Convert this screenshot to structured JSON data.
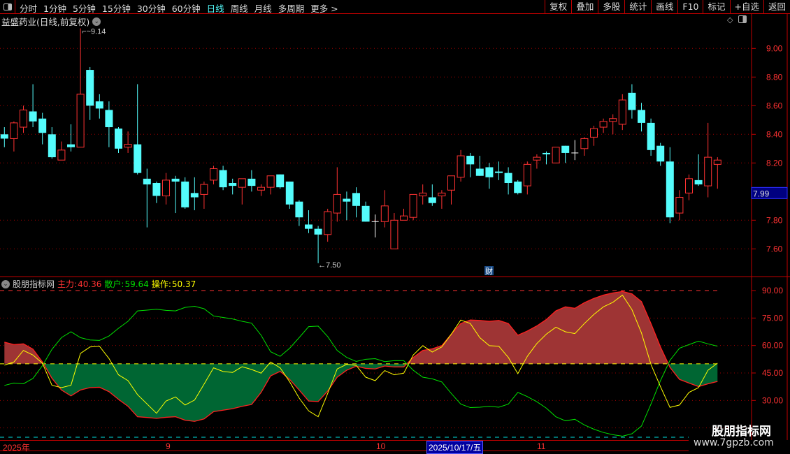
{
  "toolbar": {
    "periods": [
      "分时",
      "1分钟",
      "5分钟",
      "15分钟",
      "30分钟",
      "60分钟",
      "日线",
      "周线",
      "月线",
      "多周期",
      "更多 >"
    ],
    "active_period": "日线",
    "buttons": [
      "复权",
      "叠加",
      "多股",
      "统计",
      "画线",
      "F10",
      "标记",
      "+自选",
      "返回"
    ]
  },
  "chart_title": "益盛药业(日线,前复权)",
  "price_axis": {
    "ticks": [
      "9.00",
      "8.80",
      "8.60",
      "8.40",
      "8.20",
      "7.80",
      "7.60"
    ],
    "tick_values": [
      9.0,
      8.8,
      8.6,
      8.4,
      8.2,
      7.8,
      7.6
    ],
    "current_price": "7.99"
  },
  "annotations": {
    "high": "9.14",
    "low": "7.50",
    "badge": "财"
  },
  "indicator": {
    "name": "股朋指标网",
    "main_label": "主力:",
    "main_value": "40.36",
    "retail_label": "散户:",
    "retail_value": "59.64",
    "op_label": "操作:",
    "op_value": "50.37",
    "ticks": [
      "90.00",
      "75.00",
      "60.00",
      "45.00",
      "30.00"
    ],
    "tick_values": [
      90,
      75,
      60,
      45,
      30
    ]
  },
  "date_axis": {
    "labels": [
      "2025年",
      "9",
      "10",
      "11"
    ],
    "selected": "2025/10/17/五"
  },
  "watermark": {
    "name": "股朋指标网",
    "url": "www.7gpzb.com"
  },
  "colors": {
    "up": "#ff3232",
    "down": "#54fcfc",
    "main_fill_up": "#9e3434",
    "main_fill_down": "#006633",
    "retail_line": "#00e000",
    "op_line": "#ffff00"
  },
  "chart_data": [
    {
      "type": "candlestick",
      "ylim": [
        7.5,
        9.15
      ],
      "ohlc": [
        [
          8.4,
          8.45,
          8.31,
          8.37
        ],
        [
          8.37,
          8.49,
          8.28,
          8.48
        ],
        [
          8.45,
          8.6,
          8.41,
          8.57
        ],
        [
          8.56,
          8.75,
          8.45,
          8.49
        ],
        [
          8.51,
          8.55,
          8.33,
          8.41
        ],
        [
          8.4,
          8.45,
          8.23,
          8.24
        ],
        [
          8.22,
          8.35,
          8.22,
          8.29
        ],
        [
          8.33,
          8.47,
          8.28,
          8.31
        ],
        [
          8.31,
          9.14,
          8.31,
          8.68
        ],
        [
          8.85,
          8.87,
          8.5,
          8.6
        ],
        [
          8.63,
          8.68,
          8.51,
          8.58
        ],
        [
          8.57,
          8.63,
          8.31,
          8.45
        ],
        [
          8.44,
          8.45,
          8.27,
          8.3
        ],
        [
          8.31,
          8.42,
          8.27,
          8.33
        ],
        [
          8.33,
          8.75,
          8.12,
          8.13
        ],
        [
          8.09,
          8.16,
          7.75,
          8.05
        ],
        [
          8.06,
          8.07,
          7.92,
          7.97
        ],
        [
          7.97,
          8.13,
          7.91,
          8.08
        ],
        [
          8.09,
          8.11,
          7.85,
          8.07
        ],
        [
          8.07,
          8.1,
          7.88,
          7.89
        ],
        [
          7.99,
          8.1,
          7.87,
          7.96
        ],
        [
          7.98,
          8.07,
          7.88,
          8.05
        ],
        [
          8.08,
          8.18,
          8.05,
          8.16
        ],
        [
          8.15,
          8.18,
          8.01,
          8.03
        ],
        [
          8.06,
          8.09,
          7.98,
          8.04
        ],
        [
          8.03,
          8.09,
          7.91,
          8.09
        ],
        [
          8.09,
          8.15,
          8.0,
          8.04
        ],
        [
          8.01,
          8.05,
          7.97,
          8.03
        ],
        [
          8.03,
          8.11,
          7.98,
          8.11
        ],
        [
          8.12,
          8.12,
          8.02,
          8.03
        ],
        [
          8.07,
          8.07,
          7.88,
          7.91
        ],
        [
          7.93,
          7.94,
          7.76,
          7.82
        ],
        [
          7.77,
          7.87,
          7.71,
          7.74
        ],
        [
          7.74,
          7.76,
          7.5,
          7.7
        ],
        [
          7.7,
          7.88,
          7.65,
          7.86
        ],
        [
          7.85,
          8.17,
          7.79,
          7.98
        ],
        [
          7.95,
          8.0,
          7.8,
          7.93
        ],
        [
          7.99,
          8.03,
          7.82,
          7.9
        ],
        [
          7.9,
          7.93,
          7.79,
          7.79
        ],
        [
          7.79,
          7.84,
          7.68,
          7.79
        ],
        [
          7.79,
          8.01,
          7.75,
          7.9
        ],
        [
          7.6,
          7.85,
          7.6,
          7.8
        ],
        [
          7.8,
          7.88,
          7.8,
          7.83
        ],
        [
          7.82,
          7.98,
          7.8,
          7.98
        ],
        [
          7.97,
          8.05,
          7.91,
          7.99
        ],
        [
          7.96,
          8.05,
          7.9,
          7.92
        ],
        [
          7.97,
          8.01,
          7.88,
          7.99
        ],
        [
          8.01,
          8.11,
          7.91,
          8.11
        ],
        [
          8.1,
          8.29,
          8.07,
          8.25
        ],
        [
          8.25,
          8.27,
          8.1,
          8.19
        ],
        [
          8.16,
          8.25,
          8.11,
          8.11
        ],
        [
          8.17,
          8.2,
          8.02,
          8.1
        ],
        [
          8.14,
          8.21,
          8.08,
          8.13
        ],
        [
          8.13,
          8.17,
          7.98,
          8.06
        ],
        [
          8.07,
          8.08,
          7.98,
          7.99
        ],
        [
          8.04,
          8.21,
          7.98,
          8.19
        ],
        [
          8.22,
          8.26,
          8.16,
          8.24
        ],
        [
          8.27,
          8.28,
          8.19,
          8.26
        ],
        [
          8.2,
          8.31,
          8.2,
          8.31
        ],
        [
          8.32,
          8.32,
          8.2,
          8.27
        ],
        [
          8.27,
          8.36,
          8.22,
          8.27
        ],
        [
          8.3,
          8.38,
          8.25,
          8.37
        ],
        [
          8.38,
          8.46,
          8.32,
          8.44
        ],
        [
          8.45,
          8.51,
          8.41,
          8.49
        ],
        [
          8.49,
          8.54,
          8.4,
          8.51
        ],
        [
          8.47,
          8.68,
          8.43,
          8.64
        ],
        [
          8.69,
          8.75,
          8.51,
          8.57
        ],
        [
          8.57,
          8.62,
          8.42,
          8.48
        ],
        [
          8.48,
          8.51,
          8.25,
          8.29
        ],
        [
          8.32,
          8.34,
          8.18,
          8.21
        ],
        [
          8.21,
          8.31,
          7.78,
          7.82
        ],
        [
          7.85,
          8.01,
          7.8,
          7.96
        ],
        [
          7.99,
          8.12,
          7.94,
          8.09
        ],
        [
          8.08,
          8.26,
          8.04,
          8.05
        ],
        [
          8.04,
          8.48,
          7.96,
          8.24
        ],
        [
          8.19,
          8.24,
          8.02,
          8.22
        ]
      ]
    },
    {
      "type": "area",
      "ylim": [
        10,
        92
      ],
      "reference_lines": [
        90,
        50
      ],
      "main": [
        61.8,
        60.5,
        60.9,
        58.0,
        51.0,
        42.1,
        35.7,
        32.5,
        35.7,
        37.0,
        37.2,
        34.8,
        30.6,
        26.8,
        21.1,
        20.7,
        20.2,
        20.8,
        21.1,
        19.2,
        18.6,
        19.9,
        23.9,
        24.7,
        25.5,
        26.8,
        27.8,
        34.4,
        43.4,
        45.9,
        41.5,
        35.7,
        29.7,
        29.4,
        35.1,
        42.7,
        46.5,
        48.7,
        47.5,
        47.2,
        48.8,
        48.3,
        48.3,
        53.5,
        57.3,
        58.2,
        59.9,
        66.2,
        72.0,
        73.9,
        73.7,
        73.2,
        73.7,
        72.0,
        65.6,
        67.9,
        70.7,
        74.2,
        78.9,
        81.1,
        80.3,
        83.4,
        85.7,
        87.5,
        88.7,
        89.5,
        88.2,
        84.0,
        72.0,
        59.2,
        48.1,
        41.5,
        39.5,
        37.6,
        39.1,
        40.36
      ],
      "op": [
        49.3,
        51.0,
        57.3,
        54.8,
        50.3,
        38.3,
        37.0,
        38.3,
        55.7,
        59.2,
        59.6,
        52.9,
        44.0,
        40.8,
        33.2,
        28.1,
        23.0,
        29.7,
        31.9,
        27.5,
        30.2,
        38.9,
        47.8,
        45.8,
        45.3,
        48.4,
        46.9,
        44.9,
        51.0,
        47.8,
        40.2,
        31.3,
        24.3,
        21.1,
        33.8,
        47.2,
        49.7,
        49.1,
        42.7,
        40.8,
        46.3,
        44.0,
        44.9,
        54.8,
        59.9,
        56.4,
        59.2,
        66.2,
        73.9,
        72.0,
        64.3,
        59.9,
        59.6,
        53.5,
        44.6,
        54.1,
        61.1,
        66.2,
        70.0,
        67.5,
        66.5,
        72.0,
        77.0,
        81.1,
        83.6,
        87.5,
        79.6,
        66.9,
        49.7,
        37.6,
        26.2,
        27.5,
        34.4,
        37.0,
        46.5,
        50.37
      ]
    }
  ]
}
